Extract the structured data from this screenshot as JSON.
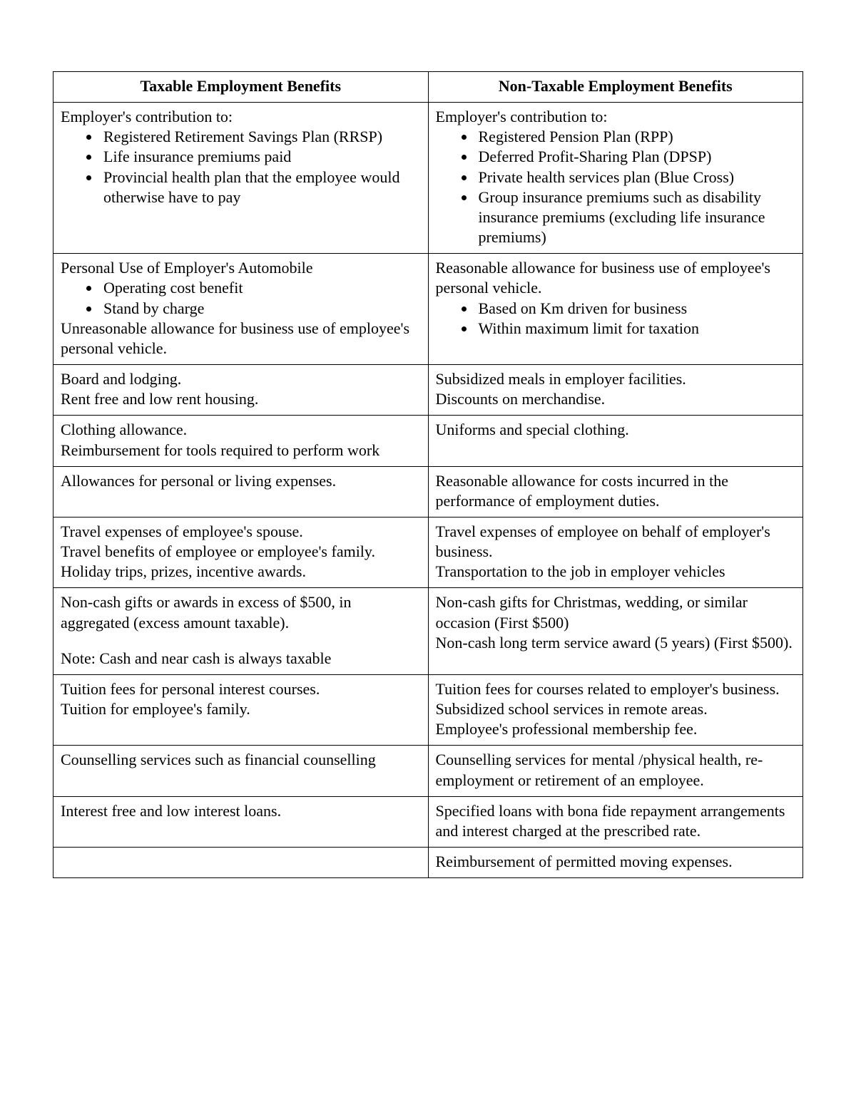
{
  "headers": {
    "taxable": "Taxable Employment Benefits",
    "nontaxable": "Non-Taxable Employment Benefits"
  },
  "rows": [
    {
      "left": {
        "intro": "Employer's contribution to:",
        "bullets": [
          "Registered Retirement Savings Plan (RRSP)",
          "Life insurance premiums paid",
          "Provincial health plan that the employee would otherwise have to pay"
        ]
      },
      "right": {
        "intro": "Employer's contribution to:",
        "bullets": [
          "Registered Pension Plan (RPP)",
          "Deferred Profit-Sharing Plan (DPSP)",
          "Private health services plan (Blue Cross)",
          "Group insurance premiums such as disability insurance premiums (excluding life insurance premiums)"
        ]
      }
    },
    {
      "left": {
        "intro": "Personal Use of Employer's Automobile",
        "bullets": [
          "Operating cost benefit",
          "Stand by charge"
        ],
        "trail": "Unreasonable allowance for business use of employee's personal vehicle."
      },
      "right": {
        "intro": "Reasonable allowance for business use of employee's personal vehicle.",
        "bullets": [
          "Based on Km driven for business",
          "Within maximum limit for taxation"
        ]
      }
    },
    {
      "left": {
        "lines": [
          "Board and lodging.",
          "Rent free and low rent housing."
        ]
      },
      "right": {
        "lines": [
          "Subsidized meals in employer facilities.",
          "Discounts on merchandise."
        ]
      }
    },
    {
      "left": {
        "lines": [
          "Clothing allowance.",
          "Reimbursement for tools required to perform work"
        ]
      },
      "right": {
        "lines": [
          "Uniforms and special clothing."
        ]
      }
    },
    {
      "left": {
        "lines": [
          "Allowances for personal or living expenses."
        ]
      },
      "right": {
        "lines": [
          "Reasonable allowance for costs incurred in the performance of employment duties."
        ]
      }
    },
    {
      "left": {
        "lines": [
          "Travel expenses of employee's spouse.",
          "Travel benefits of employee or employee's family.",
          "Holiday trips, prizes, incentive awards."
        ]
      },
      "right": {
        "lines": [
          "Travel expenses of employee on behalf of employer's business.",
          "Transportation to the job in employer vehicles"
        ]
      }
    },
    {
      "left": {
        "lines": [
          "Non-cash gifts or awards in excess of $500, in aggregated (excess amount taxable)."
        ],
        "note": "Note: Cash and near cash is always taxable"
      },
      "right": {
        "lines": [
          "Non-cash gifts for Christmas, wedding, or similar occasion (First $500)",
          "Non-cash long term service award (5 years) (First $500)."
        ]
      }
    },
    {
      "left": {
        "lines": [
          "Tuition fees for personal interest courses.",
          "Tuition for employee's family."
        ]
      },
      "right": {
        "lines": [
          "Tuition fees for courses related to employer's business.",
          "Subsidized school services in remote areas.",
          "Employee's professional membership fee."
        ]
      }
    },
    {
      "left": {
        "lines": [
          "Counselling services such as financial counselling"
        ]
      },
      "right": {
        "lines": [
          "Counselling services for mental /physical health, re-employment or retirement of an employee."
        ]
      }
    },
    {
      "left": {
        "lines": [
          "Interest free and low interest loans."
        ]
      },
      "right": {
        "lines": [
          "Specified loans with bona fide repayment arrangements and interest charged at the prescribed rate."
        ]
      }
    },
    {
      "left": {
        "lines": []
      },
      "right": {
        "lines": [
          "Reimbursement of permitted moving expenses."
        ]
      }
    }
  ]
}
